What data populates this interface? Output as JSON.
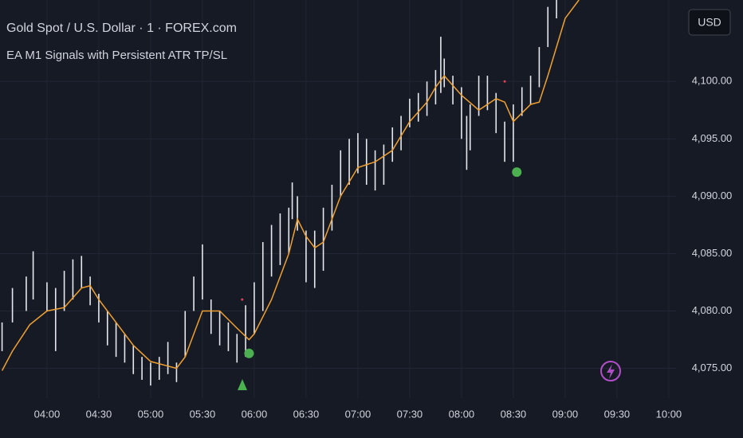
{
  "header": {
    "title": "Gold Spot / U.S. Dollar · 1 · FOREX.com",
    "indicator": "EA M1 Signals with Persistent ATR TP/SL",
    "currency": "USD"
  },
  "chart_data": {
    "type": "range-bars",
    "xlim": [
      212.8,
      604.2
    ],
    "ylim": [
      4072.4,
      4107.1
    ],
    "grid": true,
    "xticks": [
      {
        "value": 240,
        "label": "04:00"
      },
      {
        "value": 270,
        "label": "04:30"
      },
      {
        "value": 300,
        "label": "05:00"
      },
      {
        "value": 330,
        "label": "05:30"
      },
      {
        "value": 360,
        "label": "06:00"
      },
      {
        "value": 390,
        "label": "06:30"
      },
      {
        "value": 420,
        "label": "07:00"
      },
      {
        "value": 450,
        "label": "07:30"
      },
      {
        "value": 480,
        "label": "08:00"
      },
      {
        "value": 510,
        "label": "08:30"
      },
      {
        "value": 540,
        "label": "09:00"
      },
      {
        "value": 570,
        "label": "09:30"
      },
      {
        "value": 600,
        "label": "10:00"
      }
    ],
    "yticks": [
      {
        "value": 4075,
        "label": "4,075.00"
      },
      {
        "value": 4080,
        "label": "4,080.00"
      },
      {
        "value": 4085,
        "label": "4,085.00"
      },
      {
        "value": 4090,
        "label": "4,090.00"
      },
      {
        "value": 4095,
        "label": "4,095.00"
      },
      {
        "value": 4100,
        "label": "4,100.00"
      }
    ],
    "bars": {
      "color": "#e6e8ee",
      "x": [
        214,
        220,
        228,
        232,
        240,
        245,
        250,
        255,
        260,
        265,
        270,
        275,
        280,
        285,
        290,
        295,
        300,
        305,
        310,
        315,
        320,
        325,
        330,
        335,
        340,
        345,
        350,
        355,
        360,
        365,
        370,
        375,
        380,
        382,
        385,
        390,
        395,
        400,
        405,
        410,
        415,
        420,
        425,
        430,
        435,
        440,
        445,
        450,
        455,
        460,
        465,
        468,
        470,
        475,
        480,
        483,
        485,
        490,
        495,
        500,
        505,
        510,
        515,
        520,
        525,
        530,
        535
      ],
      "low": [
        4076.5,
        4079,
        4080,
        4081,
        4080,
        4076.5,
        4080,
        4081,
        4082,
        4080.5,
        4079,
        4077,
        4076,
        4075.5,
        4074.5,
        4074,
        4073.5,
        4074,
        4074.5,
        4073.8,
        4076,
        4080,
        4081,
        4078,
        4077,
        4076.5,
        4075.5,
        4076,
        4078,
        4080,
        4083,
        4084,
        4085,
        4088,
        4087,
        4082.5,
        4082,
        4083.5,
        4087,
        4090,
        4091,
        4092,
        4091,
        4090.5,
        4091,
        4093,
        4094,
        4096,
        4096.5,
        4097,
        4098,
        4099,
        4099.5,
        4098,
        4095,
        4092.3,
        4094,
        4097,
        4097.5,
        4095.5,
        4093,
        4093,
        4097,
        4098,
        4099.5,
        4103,
        4105.5
      ],
      "high": [
        4079,
        4082,
        4083,
        4085.2,
        4082.5,
        4082,
        4083.5,
        4084.5,
        4084.8,
        4083,
        4081.5,
        4080,
        4079,
        4078,
        4077,
        4076,
        4075.5,
        4076,
        4077.3,
        4075.5,
        4080,
        4083,
        4085.8,
        4081,
        4080,
        4079,
        4078,
        4080.5,
        4082.5,
        4086,
        4087.5,
        4088.5,
        4089,
        4091.2,
        4090,
        4087,
        4087,
        4089,
        4091,
        4094,
        4095,
        4095.5,
        4095,
        4094,
        4094.5,
        4096,
        4097,
        4098.5,
        4099,
        4100,
        4101,
        4103.9,
        4102,
        4100.5,
        4099.5,
        4097,
        4098,
        4100.5,
        4100.5,
        4099,
        4096.5,
        4098,
        4099.5,
        4100.5,
        4103,
        4106.5,
        4107.5
      ]
    },
    "average": {
      "color": "#f0a030",
      "x": [
        214,
        220,
        230,
        240,
        250,
        260,
        265,
        270,
        280,
        290,
        300,
        310,
        315,
        320,
        330,
        340,
        350,
        357,
        360,
        370,
        380,
        385,
        390,
        395,
        400,
        410,
        420,
        430,
        440,
        450,
        460,
        465,
        470,
        480,
        490,
        500,
        505,
        510,
        520,
        525,
        530,
        540,
        548
      ],
      "values": [
        4074.8,
        4076.5,
        4078.8,
        4080,
        4080.3,
        4082,
        4082.2,
        4081,
        4079,
        4077,
        4075.6,
        4075.2,
        4075,
        4076,
        4080,
        4080,
        4078.5,
        4077.5,
        4078,
        4081,
        4085,
        4088,
        4086.5,
        4085.5,
        4086,
        4090,
        4092.5,
        4093,
        4094,
        4096.5,
        4098.2,
        4099.5,
        4100.5,
        4098.8,
        4097.5,
        4098.5,
        4098.2,
        4096.5,
        4098,
        4098.2,
        4100.5,
        4105.5,
        4107.1
      ]
    },
    "signals": {
      "color": "#4caf50",
      "x": [
        357,
        512
      ],
      "values": [
        4076.3,
        4092.1
      ]
    },
    "markers": {
      "color": "#e0405a",
      "x": [
        353,
        505
      ],
      "values": [
        4081,
        4100
      ]
    }
  }
}
